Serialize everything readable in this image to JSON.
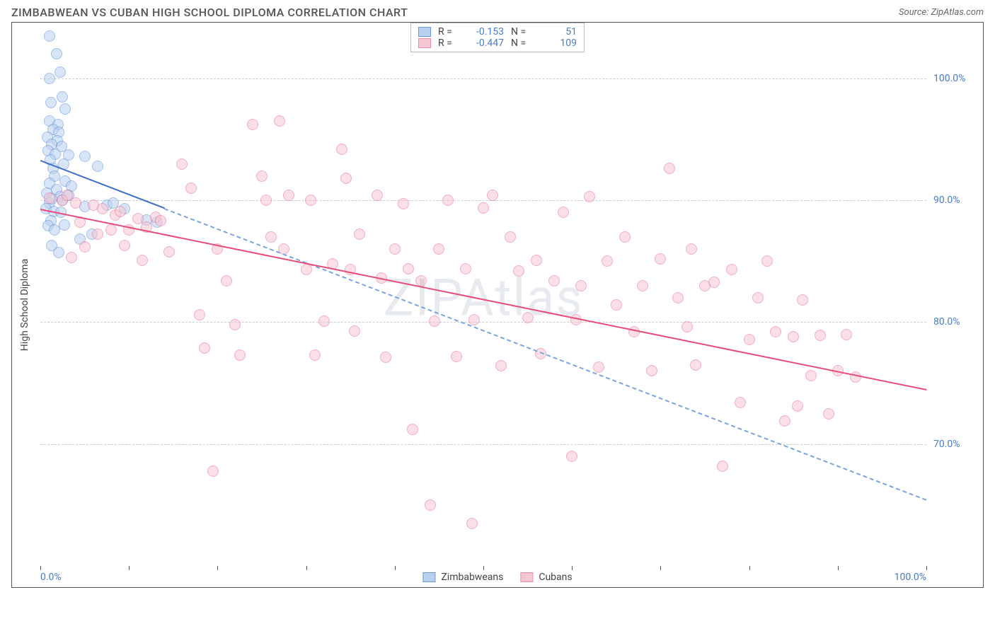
{
  "header": {
    "title": "ZIMBABWEAN VS CUBAN HIGH SCHOOL DIPLOMA CORRELATION CHART",
    "source_prefix": "Source: ",
    "source_link": "ZipAtlas.com"
  },
  "watermark": "ZIPAtlas",
  "ylabel": "High School Diploma",
  "legend_top": {
    "series": [
      {
        "swatch_fill": "#b9d1f0",
        "swatch_border": "#6a9ad8",
        "r_label": "R =",
        "r_value": "-0.153",
        "n_label": "N =",
        "n_value": "51"
      },
      {
        "swatch_fill": "#f6c6d3",
        "swatch_border": "#e98ca6",
        "r_label": "R =",
        "r_value": "-0.447",
        "n_label": "N =",
        "n_value": "109"
      }
    ]
  },
  "legend_bottom": {
    "items": [
      {
        "swatch_fill": "#b9d1f0",
        "swatch_border": "#6a9ad8",
        "label": "Zimbabweans"
      },
      {
        "swatch_fill": "#f6c6d3",
        "swatch_border": "#e98ca6",
        "label": "Cubans"
      }
    ]
  },
  "chart": {
    "type": "scatter",
    "xlim": [
      0,
      100
    ],
    "ylim": [
      60,
      104
    ],
    "xticks": [
      {
        "value": 0,
        "label": "0.0%",
        "show_label": true
      },
      {
        "value": 10,
        "label": "",
        "show_label": false
      },
      {
        "value": 20,
        "label": "",
        "show_label": false
      },
      {
        "value": 30,
        "label": "",
        "show_label": false
      },
      {
        "value": 40,
        "label": "",
        "show_label": false
      },
      {
        "value": 50,
        "label": "",
        "show_label": false
      },
      {
        "value": 60,
        "label": "",
        "show_label": false
      },
      {
        "value": 70,
        "label": "",
        "show_label": false
      },
      {
        "value": 80,
        "label": "",
        "show_label": false
      },
      {
        "value": 90,
        "label": "",
        "show_label": false
      },
      {
        "value": 100,
        "label": "100.0%",
        "show_label": true
      }
    ],
    "yticks": [
      {
        "value": 70,
        "label": "70.0%"
      },
      {
        "value": 80,
        "label": "80.0%"
      },
      {
        "value": 90,
        "label": "90.0%"
      },
      {
        "value": 100,
        "label": "100.0%"
      }
    ],
    "grid_color": "#cccccc",
    "background_color": "#ffffff",
    "marker_radius": 8,
    "marker_opacity": 0.55,
    "series": [
      {
        "name": "Zimbabweans",
        "fill": "#b9d1f0",
        "stroke": "#5a8fd6",
        "points": [
          [
            1,
            103.5
          ],
          [
            1.8,
            102
          ],
          [
            1,
            100
          ],
          [
            2.2,
            100.5
          ],
          [
            1.2,
            98
          ],
          [
            2.5,
            98.5
          ],
          [
            2.8,
            97.5
          ],
          [
            1,
            96.5
          ],
          [
            2,
            96.2
          ],
          [
            1.4,
            95.8
          ],
          [
            2.1,
            95.6
          ],
          [
            0.8,
            95.2
          ],
          [
            1.9,
            94.9
          ],
          [
            1.3,
            94.6
          ],
          [
            2.4,
            94.4
          ],
          [
            0.9,
            94.1
          ],
          [
            1.7,
            93.8
          ],
          [
            3.2,
            93.7
          ],
          [
            1.1,
            93.3
          ],
          [
            2.6,
            93
          ],
          [
            1.4,
            92.6
          ],
          [
            5,
            93.6
          ],
          [
            6.5,
            92.8
          ],
          [
            1.6,
            92
          ],
          [
            2.8,
            91.6
          ],
          [
            1,
            91.4
          ],
          [
            3.5,
            91.2
          ],
          [
            1.8,
            90.9
          ],
          [
            0.7,
            90.6
          ],
          [
            2.2,
            90.3
          ],
          [
            3.2,
            90.4
          ],
          [
            1.0,
            89.8
          ],
          [
            2.5,
            90
          ],
          [
            1.3,
            90.1
          ],
          [
            0.6,
            89.3
          ],
          [
            1.5,
            89.1
          ],
          [
            2.3,
            89
          ],
          [
            5,
            89.5
          ],
          [
            7.5,
            89.6
          ],
          [
            8.2,
            89.8
          ],
          [
            9.5,
            89.3
          ],
          [
            12,
            88.4
          ],
          [
            13.2,
            88.2
          ],
          [
            1.2,
            88.3
          ],
          [
            0.9,
            87.9
          ],
          [
            2.7,
            88
          ],
          [
            1.6,
            87.6
          ],
          [
            4.5,
            86.8
          ],
          [
            1.3,
            86.3
          ],
          [
            5.8,
            87.2
          ],
          [
            2.1,
            85.7
          ]
        ],
        "reg_solid": {
          "x1": 0,
          "y1": 93.3,
          "x2": 14,
          "y2": 89.4,
          "color": "#3a6fc8",
          "width": 2
        },
        "reg_dash": {
          "x1": 14,
          "y1": 89.4,
          "x2": 100,
          "y2": 65.5,
          "color": "#7aa4e0",
          "width": 2
        }
      },
      {
        "name": "Cubans",
        "fill": "#f6c6d3",
        "stroke": "#e76f93",
        "points": [
          [
            1,
            90.2
          ],
          [
            2.5,
            90
          ],
          [
            4,
            89.8
          ],
          [
            3,
            90.4
          ],
          [
            6,
            89.6
          ],
          [
            7,
            89.3
          ],
          [
            8.5,
            88.8
          ],
          [
            9,
            89.1
          ],
          [
            10,
            87.6
          ],
          [
            11,
            88.5
          ],
          [
            12,
            87.8
          ],
          [
            4.5,
            88.2
          ],
          [
            6.5,
            87.2
          ],
          [
            8,
            87.6
          ],
          [
            13,
            88.6
          ],
          [
            13.6,
            88.3
          ],
          [
            5,
            86.2
          ],
          [
            3.5,
            85.3
          ],
          [
            9.5,
            86.3
          ],
          [
            11.5,
            85.1
          ],
          [
            14.5,
            85.8
          ],
          [
            16,
            93
          ],
          [
            17,
            91
          ],
          [
            18,
            80.6
          ],
          [
            18.5,
            77.9
          ],
          [
            19.5,
            67.8
          ],
          [
            20,
            86
          ],
          [
            21,
            83.4
          ],
          [
            22,
            79.8
          ],
          [
            22.5,
            77.3
          ],
          [
            24,
            96.2
          ],
          [
            25,
            92
          ],
          [
            25.5,
            90
          ],
          [
            26,
            87
          ],
          [
            27,
            96.5
          ],
          [
            27.5,
            86
          ],
          [
            28,
            90.4
          ],
          [
            30,
            84.3
          ],
          [
            30.5,
            90
          ],
          [
            31,
            77.3
          ],
          [
            32,
            80.1
          ],
          [
            33,
            84.8
          ],
          [
            34,
            94.2
          ],
          [
            34.5,
            91.8
          ],
          [
            35,
            84.3
          ],
          [
            35.5,
            79.3
          ],
          [
            36,
            87.2
          ],
          [
            38,
            90.4
          ],
          [
            38.5,
            83.6
          ],
          [
            39,
            77.1
          ],
          [
            40,
            86
          ],
          [
            41,
            89.7
          ],
          [
            41.5,
            84.4
          ],
          [
            42,
            71.2
          ],
          [
            43,
            83.4
          ],
          [
            44,
            65
          ],
          [
            44.5,
            80.1
          ],
          [
            45,
            86
          ],
          [
            46,
            90
          ],
          [
            47,
            77.2
          ],
          [
            48,
            84.4
          ],
          [
            48.7,
            63.5
          ],
          [
            49,
            80.2
          ],
          [
            50,
            89.4
          ],
          [
            51,
            90.4
          ],
          [
            52,
            76.4
          ],
          [
            53,
            87
          ],
          [
            54,
            84.2
          ],
          [
            55,
            80.4
          ],
          [
            56,
            85.1
          ],
          [
            56.5,
            77.4
          ],
          [
            58,
            83.4
          ],
          [
            59,
            89
          ],
          [
            60,
            69
          ],
          [
            60.5,
            80.2
          ],
          [
            61,
            83
          ],
          [
            62,
            90.3
          ],
          [
            63,
            76.3
          ],
          [
            64,
            85
          ],
          [
            65,
            81.4
          ],
          [
            66,
            87
          ],
          [
            67,
            79.2
          ],
          [
            68,
            83
          ],
          [
            69,
            76
          ],
          [
            70,
            85.2
          ],
          [
            71,
            92.6
          ],
          [
            72,
            82
          ],
          [
            73,
            79.6
          ],
          [
            73.5,
            86
          ],
          [
            74,
            76.5
          ],
          [
            75,
            83
          ],
          [
            76,
            83.3
          ],
          [
            77,
            68.2
          ],
          [
            78,
            84.3
          ],
          [
            79,
            73.4
          ],
          [
            80,
            78.6
          ],
          [
            81,
            82
          ],
          [
            82,
            85
          ],
          [
            83,
            79.2
          ],
          [
            84,
            71.9
          ],
          [
            85,
            78.8
          ],
          [
            85.5,
            73.1
          ],
          [
            86,
            81.8
          ],
          [
            87,
            75.6
          ],
          [
            88,
            78.9
          ],
          [
            89,
            72.5
          ],
          [
            90,
            76
          ],
          [
            91,
            79
          ],
          [
            92,
            75.5
          ]
        ],
        "reg_solid": {
          "x1": 0,
          "y1": 89.3,
          "x2": 100,
          "y2": 74.5,
          "color": "#e84d7a",
          "width": 2
        }
      }
    ]
  }
}
